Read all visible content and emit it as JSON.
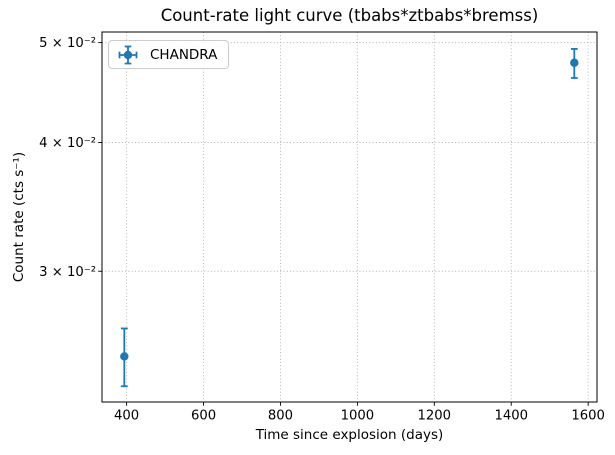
{
  "chart_data": {
    "type": "scatter",
    "title": "Count-rate light curve (tbabs*ztbabs*bremss)",
    "xlabel": "Time since explosion (days)",
    "ylabel": "Count rate (cts s⁻¹)",
    "xscale": "linear",
    "yscale": "log",
    "xlim": [
      336,
      1623
    ],
    "ylim": [
      0.0224,
      0.0512
    ],
    "xticks": [
      400,
      600,
      800,
      1000,
      1200,
      1400,
      1600
    ],
    "yticks": [
      {
        "value": 0.05,
        "label": "5 × 10⁻²"
      },
      {
        "value": 0.04,
        "label": "4 × 10⁻²"
      },
      {
        "value": 0.03,
        "label": "3 × 10⁻²"
      }
    ],
    "grid": {
      "visible": true,
      "which": "major",
      "style": "dotted",
      "color": "#b0b0b0"
    },
    "legend": {
      "location": "upper left",
      "entries": [
        {
          "label": "CHANDRA",
          "color": "#1f77b4",
          "marker": "circle-with-error-caps"
        }
      ]
    },
    "series": [
      {
        "name": "CHANDRA",
        "color": "#1f77b4",
        "marker": "o",
        "linestyle": "none",
        "points": [
          {
            "x": 394,
            "y": 0.0248,
            "yerr_plus": 0.0016,
            "yerr_minus": 0.0016
          },
          {
            "x": 1564,
            "y": 0.0478,
            "yerr_plus": 0.0015,
            "yerr_minus": 0.0016
          }
        ]
      }
    ]
  }
}
